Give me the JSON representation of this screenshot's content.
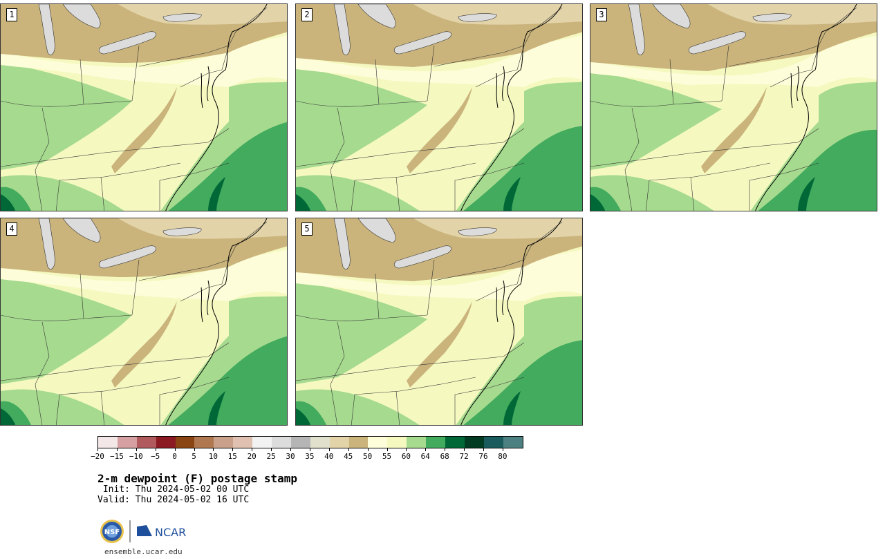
{
  "panels": [
    {
      "label": "1"
    },
    {
      "label": "2"
    },
    {
      "label": "3"
    },
    {
      "label": "4"
    },
    {
      "label": "5"
    }
  ],
  "colorbar": {
    "colors": [
      "#f4e7e7",
      "#d6a0a3",
      "#b05a5e",
      "#8b1a22",
      "#8b4513",
      "#b07850",
      "#c9a08a",
      "#e0c0b0",
      "#f2f2f2",
      "#dcdcdc",
      "#b5b5b5",
      "#e0e0cc",
      "#e2d3a8",
      "#cab47c",
      "#fdfdd9",
      "#f5f9c0",
      "#a6da8f",
      "#42ab5d",
      "#006837",
      "#003b22",
      "#1a5c5e",
      "#4d8080"
    ],
    "tick_labels": [
      "-20",
      "-15",
      "-10",
      "-5",
      "0",
      "5",
      "10",
      "15",
      "20",
      "25",
      "30",
      "35",
      "40",
      "45",
      "50",
      "55",
      "60",
      "64",
      "68",
      "72",
      "76",
      "80"
    ]
  },
  "title": "2-m dewpoint (F) postage stamp",
  "init_line": " Init: Thu 2024-05-02 00 UTC",
  "valid_line": "Valid: Thu 2024-05-02 16 UTC",
  "logos": {
    "nsf": "NSF",
    "ncar": "NCAR"
  },
  "site": "ensemble.ucar.edu"
}
